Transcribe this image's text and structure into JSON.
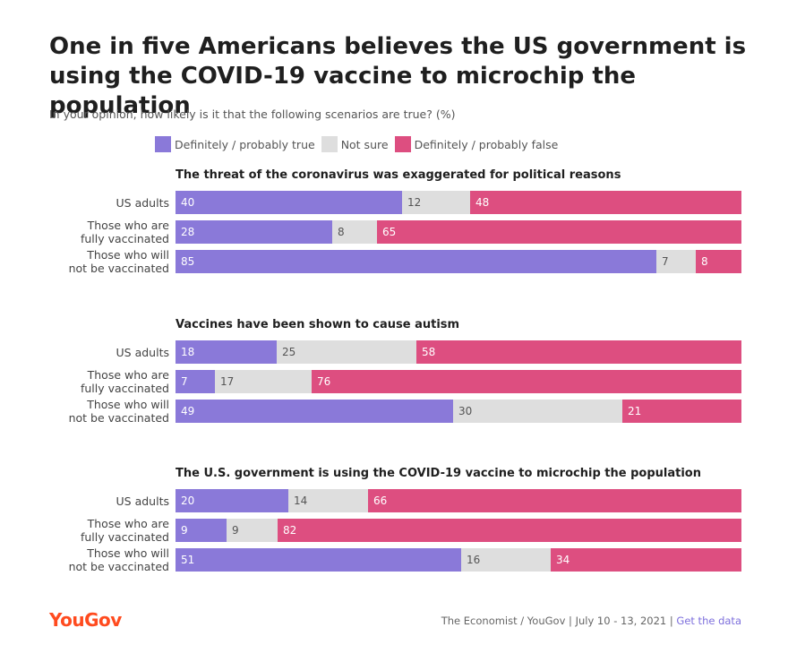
{
  "title": "One in five Americans believes the US government is using the COVID-19 vaccine to microchip the population",
  "subtitle": "In your opinion, how likely is it that the following scenarios are true? (%)",
  "legend": [
    {
      "label": "Definitely / probably true",
      "color": "#8a79d9"
    },
    {
      "label": "Not sure",
      "color": "#dedede"
    },
    {
      "label": "Definitely / probably false",
      "color": "#dd4e80"
    }
  ],
  "chart_data": {
    "type": "bar",
    "orientation": "horizontal",
    "stacked": true,
    "unit": "%",
    "series_names": [
      "Definitely / probably true",
      "Not sure",
      "Definitely / probably false"
    ],
    "panels": [
      {
        "title": "The threat of the coronavirus was exaggerated for political reasons",
        "rows": [
          {
            "label": "US adults",
            "values": [
              40,
              12,
              48
            ]
          },
          {
            "label": "Those who are\nfully vaccinated",
            "values": [
              28,
              8,
              65
            ]
          },
          {
            "label": "Those who will\nnot be vaccinated",
            "values": [
              85,
              7,
              8
            ]
          }
        ]
      },
      {
        "title": "Vaccines have been shown to cause autism",
        "rows": [
          {
            "label": "US adults",
            "values": [
              18,
              25,
              58
            ]
          },
          {
            "label": "Those who are\nfully vaccinated",
            "values": [
              7,
              17,
              76
            ]
          },
          {
            "label": "Those who will\nnot be vaccinated",
            "values": [
              49,
              30,
              21
            ]
          }
        ]
      },
      {
        "title": "The U.S. government is using the COVID-19 vaccine to microchip the population",
        "rows": [
          {
            "label": "US adults",
            "values": [
              20,
              14,
              66
            ]
          },
          {
            "label": "Those who are\nfully vaccinated",
            "values": [
              9,
              9,
              82
            ]
          },
          {
            "label": "Those who will\nnot be vaccinated",
            "values": [
              51,
              16,
              34
            ]
          }
        ]
      }
    ]
  },
  "footer": {
    "brand": "YouGov",
    "source": "The Economist / YouGov | July 10 - 13, 2021 | ",
    "link": "Get the data"
  }
}
